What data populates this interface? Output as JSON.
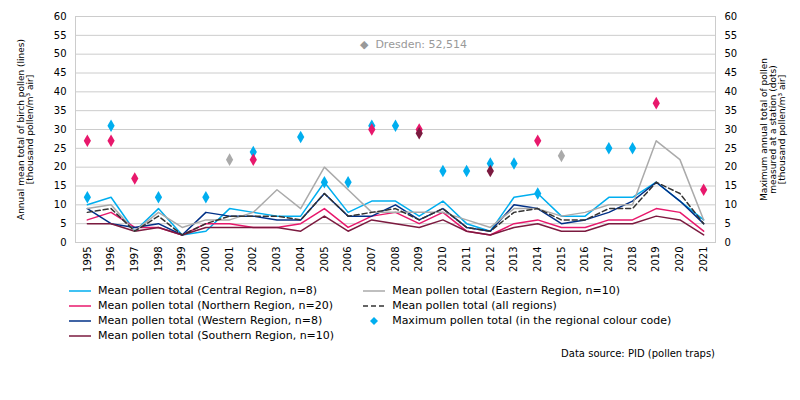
{
  "chart_data": {
    "type": "line",
    "x": [
      1995,
      1996,
      1997,
      1998,
      1999,
      2000,
      2001,
      2002,
      2003,
      2004,
      2005,
      2006,
      2007,
      2008,
      2009,
      2010,
      2011,
      2012,
      2013,
      2014,
      2015,
      2016,
      2017,
      2018,
      2019,
      2020,
      2021
    ],
    "series": [
      {
        "name": "Mean pollen total (Central Region, n=8)",
        "type": "line",
        "color": "#00AEEF",
        "values": [
          10,
          12,
          3,
          9,
          2,
          3,
          9,
          8,
          7,
          7,
          16,
          8,
          11,
          11,
          7,
          11,
          5,
          3,
          12,
          13,
          7,
          7,
          12,
          12,
          16,
          11,
          6
        ]
      },
      {
        "name": "Mean pollen total (Northern Region, n=20)",
        "type": "line",
        "color": "#E8186C",
        "values": [
          6,
          8,
          4,
          4,
          2,
          5,
          5,
          4,
          4,
          5,
          9,
          4,
          7,
          8,
          5,
          8,
          3,
          2,
          5,
          6,
          4,
          4,
          6,
          6,
          9,
          8,
          3
        ]
      },
      {
        "name": "Mean pollen total (Western Region, n=8)",
        "type": "line",
        "color": "#003087",
        "values": [
          9,
          5,
          4,
          5,
          2,
          8,
          7,
          7,
          6,
          6,
          13,
          7,
          7,
          10,
          6,
          9,
          4,
          3,
          10,
          9,
          5,
          6,
          8,
          11,
          16,
          11,
          5
        ]
      },
      {
        "name": "Mean pollen total (Southern Region, n=10)",
        "type": "line",
        "color": "#7B1A3F",
        "values": [
          5,
          5,
          3,
          4,
          2,
          4,
          4,
          4,
          4,
          3,
          7,
          3,
          6,
          5,
          4,
          6,
          3,
          2,
          4,
          5,
          3,
          3,
          5,
          5,
          7,
          6,
          2
        ]
      },
      {
        "name": "Mean pollen total (Eastern Region, n=10)",
        "type": "line",
        "color": "#AAAAAA",
        "values": [
          9,
          10,
          3,
          8,
          4,
          6,
          6,
          8,
          14,
          9,
          20,
          14,
          8,
          8,
          8,
          8,
          6,
          4,
          9,
          9,
          7,
          8,
          10,
          10,
          27,
          22,
          6
        ]
      },
      {
        "name": "Mean pollen total (all regions)",
        "type": "line",
        "line_style": "dashed",
        "color": "#333333",
        "values": [
          8,
          9,
          3,
          7,
          2,
          5,
          7,
          7,
          7,
          6,
          13,
          7,
          8,
          9,
          6,
          9,
          4,
          3,
          8,
          9,
          6,
          6,
          9,
          9,
          16,
          13,
          5
        ]
      },
      {
        "name": "Maximum pollen total (in the regional colour code)",
        "type": "scatter",
        "marker": "diamond",
        "axis": "y2",
        "color": "#00AEEF",
        "x": [
          1995,
          1996,
          1998,
          2000,
          2002,
          2004,
          2005,
          2006,
          2007,
          2008,
          2010,
          2011,
          2012,
          2013,
          2014,
          2017,
          2018,
          1995,
          1996,
          1997,
          2002,
          2007,
          2009,
          2014,
          2019,
          2021,
          2001,
          2015,
          2009,
          2012
        ],
        "values": [
          12,
          31,
          12,
          12,
          24,
          28,
          16,
          16,
          31,
          31,
          19,
          19,
          21,
          21,
          13,
          25,
          25,
          27,
          27,
          17,
          22,
          30,
          30,
          27,
          37,
          14,
          22,
          23,
          29,
          19
        ],
        "colors": [
          "#00AEEF",
          "#00AEEF",
          "#00AEEF",
          "#00AEEF",
          "#00AEEF",
          "#00AEEF",
          "#00AEEF",
          "#00AEEF",
          "#00AEEF",
          "#00AEEF",
          "#00AEEF",
          "#00AEEF",
          "#00AEEF",
          "#00AEEF",
          "#00AEEF",
          "#00AEEF",
          "#00AEEF",
          "#E8186C",
          "#E8186C",
          "#E8186C",
          "#E8186C",
          "#E8186C",
          "#E8186C",
          "#E8186C",
          "#E8186C",
          "#E8186C",
          "#AAAAAA",
          "#AAAAAA",
          "#7B1A3F",
          "#7B1A3F"
        ]
      }
    ],
    "xlim": [
      1994.5,
      2021.5
    ],
    "xticks": [
      1995,
      1996,
      1997,
      1998,
      1999,
      2000,
      2001,
      2002,
      2003,
      2004,
      2005,
      2006,
      2007,
      2008,
      2009,
      2010,
      2011,
      2012,
      2013,
      2014,
      2015,
      2016,
      2017,
      2018,
      2019,
      2020,
      2021
    ],
    "ylim": [
      0,
      60
    ],
    "yticks": [
      0,
      5,
      10,
      15,
      20,
      25,
      30,
      35,
      40,
      45,
      50,
      55,
      60
    ],
    "y2lim": [
      0,
      60
    ],
    "y2ticks": [
      0,
      5,
      10,
      15,
      20,
      25,
      30,
      35,
      40,
      45,
      50,
      55,
      60
    ],
    "ylabel": "Annual mean total of birch pollen (lines)\n[thousand pollen/m³ air]",
    "y2label": "Maximum annual total of pollen\nmeasured at a station (dots)\n[thousand pollen/m³ air]",
    "annotations": [
      {
        "text": "◆  Dresden: 52,514",
        "x": 2006.5,
        "y": 52.5,
        "color": "#999999"
      }
    ],
    "caption": "Data source: PID (pollen traps)",
    "grid": true,
    "legend": "bottom"
  }
}
